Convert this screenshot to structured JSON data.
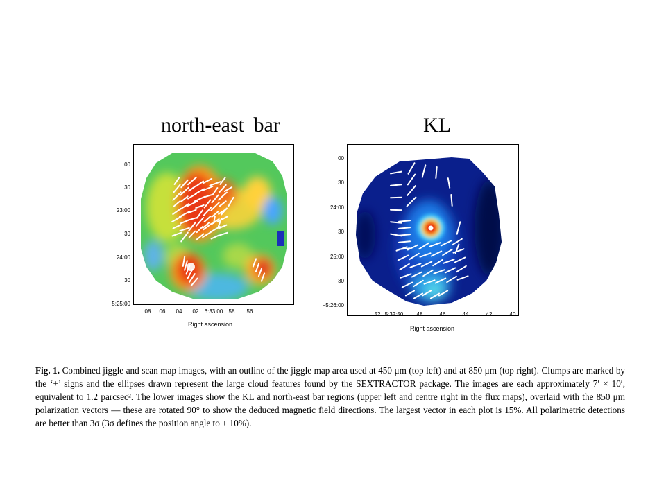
{
  "panels": {
    "left": {
      "title": "north-east bar",
      "y_ticks": [
        "00",
        "30",
        "23:00",
        "30",
        "24:00",
        "30",
        "−5:25:00"
      ],
      "x_ticks": [
        "08",
        "06",
        "04",
        "02",
        "6:33:00",
        "58",
        "56"
      ],
      "xlabel": "Right ascension"
    },
    "right": {
      "title": "KL",
      "y_ticks": [
        "00",
        "30",
        "24:00",
        "30",
        "25:00",
        "30",
        "−5:26:00"
      ],
      "x_ticks": [
        "52",
        "5:32:50",
        "48",
        "46",
        "44",
        "42",
        "40"
      ],
      "xlabel": "Right ascension"
    }
  },
  "caption": {
    "label": "Fig. 1.",
    "text": "Combined jiggle and scan map images, with an outline of the jiggle map area used at 450 μm (top left) and at 850 μm (top right). Clumps are marked by the ‘+’ signs and the ellipses drawn represent the large cloud features found by the SEXTRACTOR package. The images are each approximately 7′ × 10′, equivalent to 1.2 parcsec². The lower images show the KL and north-east bar regions (upper left and centre right in the flux maps), overlaid with the 850 μm polarization vectors — these are rotated 90° to show the deduced magnetic field directions. The largest vector in each plot is 15%. All polarimetric detections are better than 3σ (3σ defines the position angle to ± 10%)."
  }
}
